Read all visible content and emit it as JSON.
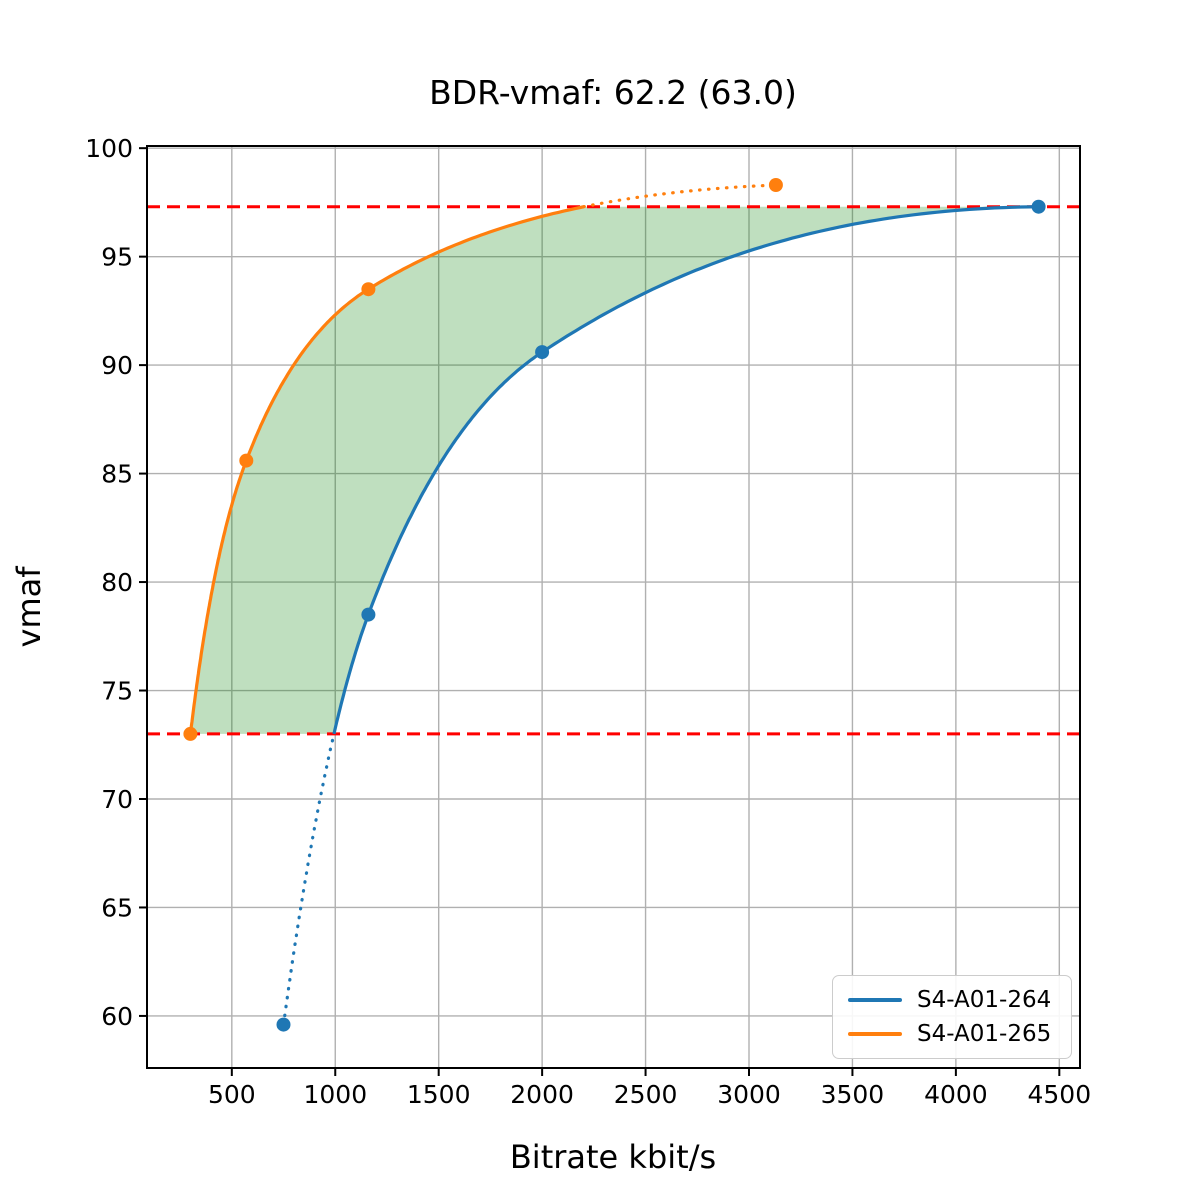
{
  "chart_data": {
    "type": "line",
    "title": "BDR-vmaf: 62.2 (63.0)",
    "xlabel": "Bitrate kbit/s",
    "ylabel": "vmaf",
    "xlim": [
      90,
      4600
    ],
    "ylim": [
      57.6,
      100.1
    ],
    "xticks": [
      500,
      1000,
      1500,
      2000,
      2500,
      3000,
      3500,
      4000,
      4500
    ],
    "yticks": [
      60,
      65,
      70,
      75,
      80,
      85,
      90,
      95,
      100
    ],
    "grid": true,
    "grid_color": "#b0b0b0",
    "legend_position": "lower right",
    "series": [
      {
        "name": "S4-A01-264",
        "color": "#1f77b4",
        "points": [
          [
            750,
            59.6
          ],
          [
            1160,
            78.5
          ],
          [
            2000,
            90.6
          ],
          [
            4400,
            97.3
          ]
        ]
      },
      {
        "name": "S4-A01-265",
        "color": "#ff7f0e",
        "points": [
          [
            300,
            73.0
          ],
          [
            570,
            85.6
          ],
          [
            1160,
            93.5
          ],
          [
            3130,
            98.3
          ]
        ]
      }
    ],
    "overlap": {
      "low": 73.0,
      "high": 97.3,
      "line_color": "#ff0000",
      "line_style": "dashed"
    },
    "fill": {
      "color": "#008000",
      "opacity": 0.25
    },
    "interpolation": "pchip-log-x",
    "out_of_range_style": "dotted"
  }
}
